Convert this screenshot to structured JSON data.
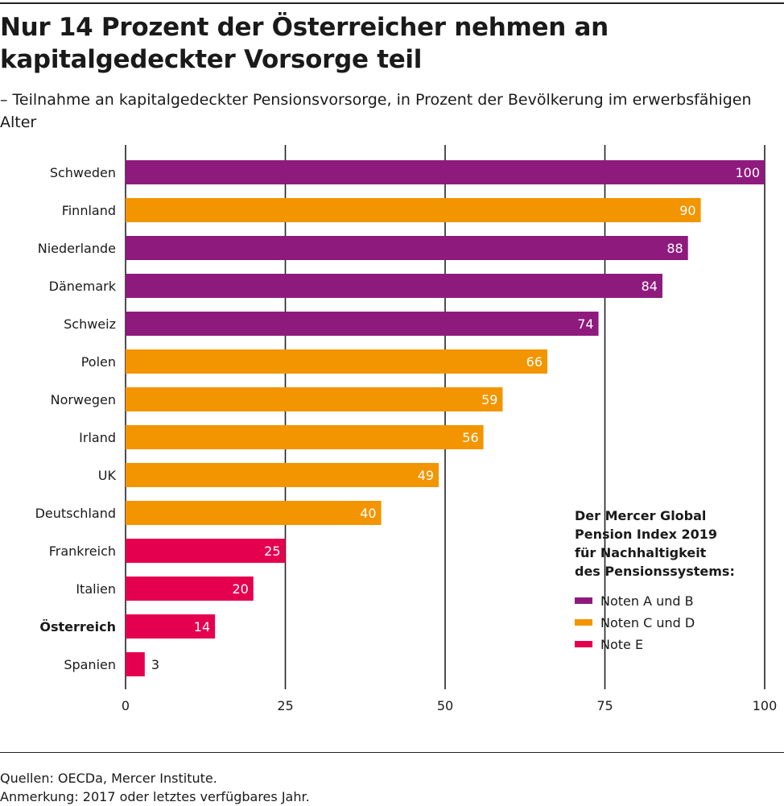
{
  "title": "Nur 14 Prozent der Österreicher nehmen an kapitalgedeckter Vorsorge teil",
  "subtitle": "– Teilnahme an kapitalgedeckter Pensionsvorsorge, in Prozent der Bevölkerung im erwerbsfähigen Alter",
  "chart_data": {
    "type": "bar",
    "orientation": "horizontal",
    "categories": [
      "Schweden",
      "Finnland",
      "Niederlande",
      "Dänemark",
      "Schweiz",
      "Polen",
      "Norwegen",
      "Irland",
      "UK",
      "Deutschland",
      "Frankreich",
      "Italien",
      "Österreich",
      "Spanien"
    ],
    "values": [
      100,
      90,
      88,
      84,
      74,
      66,
      59,
      56,
      49,
      40,
      25,
      20,
      14,
      3
    ],
    "groups": [
      "AB",
      "CD",
      "AB",
      "AB",
      "AB",
      "CD",
      "CD",
      "CD",
      "CD",
      "CD",
      "E",
      "E",
      "E",
      "E"
    ],
    "highlight": "Österreich",
    "xlim": [
      0,
      100
    ],
    "xticks": [
      0,
      25,
      50,
      75,
      100
    ],
    "grid": true,
    "legend": {
      "title": "Der Mercer Global Pension Index 2019 für Nachhaltigkeit des Pensionssystems:",
      "title_lines": [
        "Der Mercer Global",
        "Pension Index 2019",
        "für Nachhaltigkeit",
        "des Pensionssystems:"
      ],
      "placement": "bottom-right",
      "items": [
        {
          "key": "AB",
          "label": "Noten A und B",
          "color": "#8f1a7e"
        },
        {
          "key": "CD",
          "label": "Noten C und D",
          "color": "#f29500"
        },
        {
          "key": "E",
          "label": "Note E",
          "color": "#e5004f"
        }
      ]
    }
  },
  "footer": {
    "source": "Quellen: OECDa, Mercer Institute.",
    "note": "Anmerkung: 2017 oder letztes verfügbares Jahr."
  }
}
